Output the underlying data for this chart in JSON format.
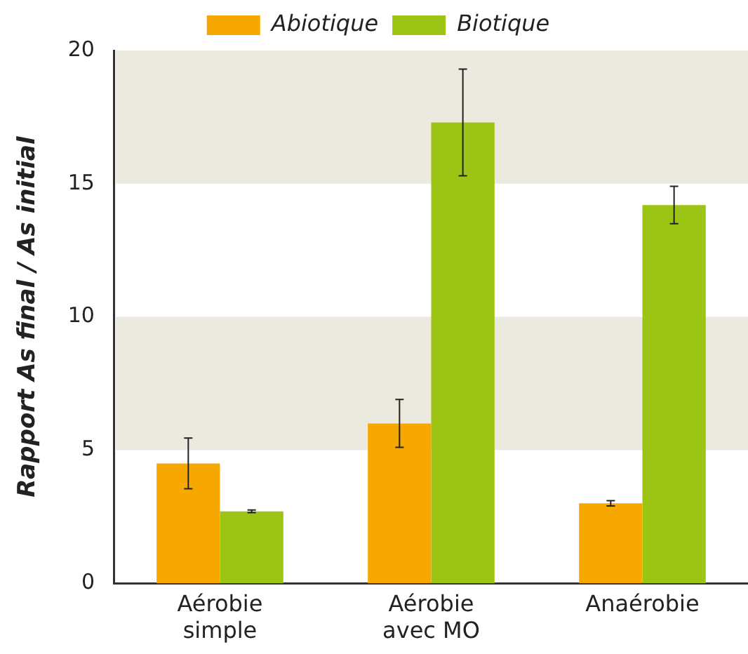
{
  "chart_data": {
    "type": "bar",
    "ylabel": "Rapport As final / As initial",
    "categories": [
      "Aérobie\nsimple",
      "Aérobie\navec MO",
      "Anaérobie"
    ],
    "series": [
      {
        "name": "Abiotique",
        "color": "#f7a800",
        "values": [
          4.5,
          6,
          3
        ],
        "errors": [
          0.95,
          0.9,
          0.1
        ]
      },
      {
        "name": "Biotique",
        "color": "#9cc414",
        "values": [
          2.7,
          17.3,
          14.2
        ],
        "errors": [
          0.05,
          2,
          0.7
        ]
      }
    ],
    "ylim": [
      0,
      20
    ],
    "yticks": [
      0,
      5,
      10,
      15,
      20
    ],
    "bands": [
      {
        "axis": "y",
        "from": 5,
        "to": 10,
        "color": "#ece9de"
      },
      {
        "axis": "y",
        "from": 15,
        "to": 20,
        "color": "#ece9de"
      }
    ],
    "grid": false,
    "legend": "top"
  }
}
